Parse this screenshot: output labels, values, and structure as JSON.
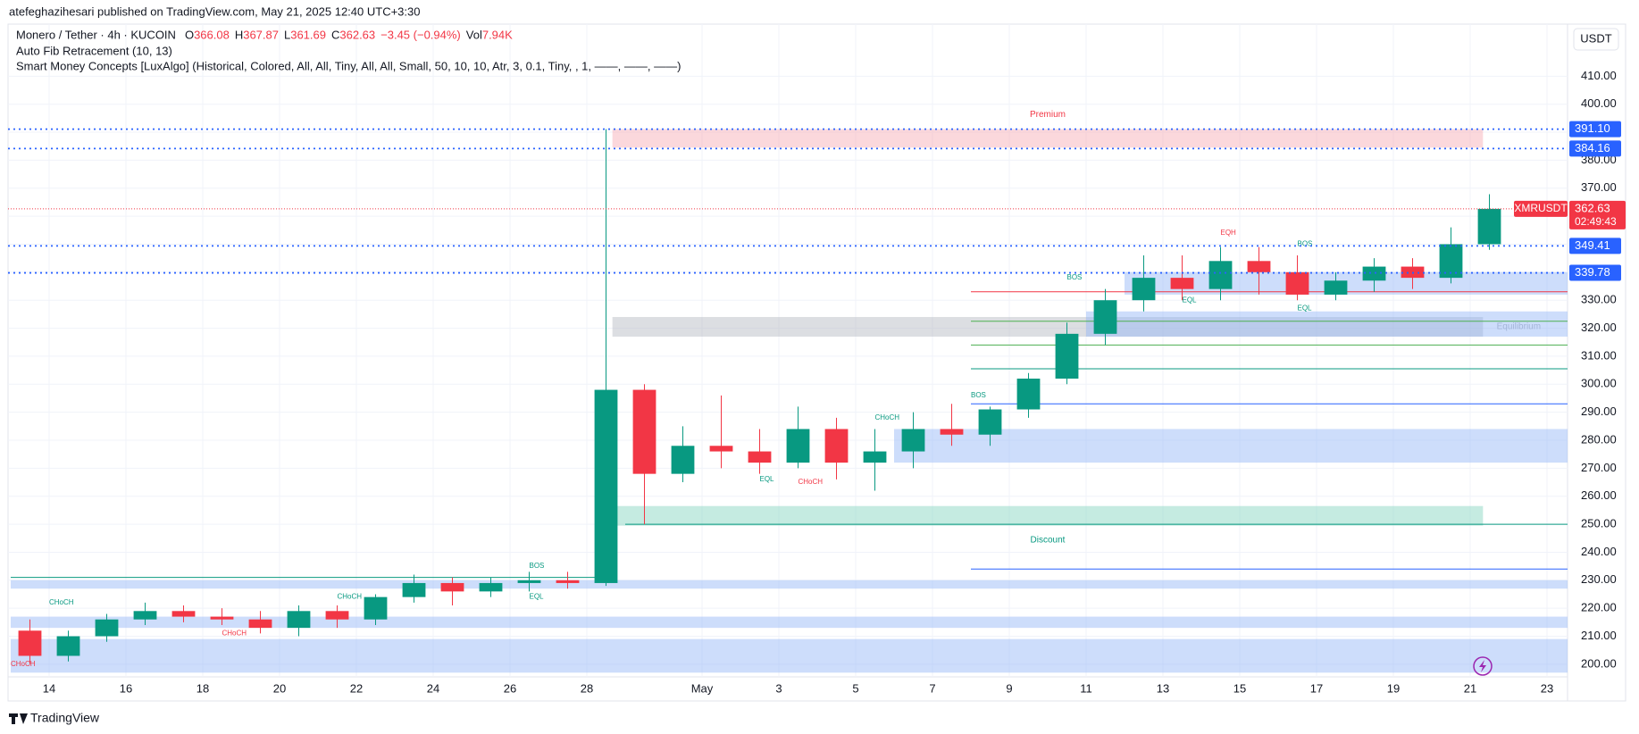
{
  "header": {
    "publisher": "atefeghazihesari published on TradingView.com, May 21, 2025 12:40 UTC+3:30",
    "symbol": "Monero / Tether · 4h · KUCOIN",
    "ohlc": [
      {
        "label": "O",
        "value": "366.08"
      },
      {
        "label": "H",
        "value": "367.87"
      },
      {
        "label": "L",
        "value": "361.69"
      },
      {
        "label": "C",
        "value": "362.63"
      },
      {
        "label": "",
        "value": "−3.45 (−0.94%)"
      }
    ],
    "volume": {
      "label": "Vol",
      "value": "7.94K"
    },
    "indicators": [
      "Auto Fib Retracement (10, 13)",
      "Smart Money Concepts [LuxAlgo] (Historical, Colored, All, All, Tiny, All, All, Small, 50, 10, 10, Atr, 3, 0.1, Tiny, , 1, ——, ——, ——)"
    ],
    "currency": "USDT",
    "logo": "TradingView"
  },
  "chart_data": {
    "type": "candlestick",
    "up_color": "#089981",
    "down_color": "#f23645",
    "x": [
      "2025-04-13",
      "2025-04-14",
      "2025-04-15",
      "2025-04-16",
      "2025-04-17",
      "2025-04-18",
      "2025-04-19",
      "2025-04-20",
      "2025-04-21",
      "2025-04-22",
      "2025-04-23",
      "2025-04-24",
      "2025-04-25",
      "2025-04-26",
      "2025-04-27",
      "2025-04-28",
      "2025-04-29",
      "2025-04-30",
      "2025-05-01",
      "2025-05-02",
      "2025-05-03",
      "2025-05-04",
      "2025-05-05",
      "2025-05-06",
      "2025-05-07",
      "2025-05-08",
      "2025-05-09",
      "2025-05-10",
      "2025-05-11",
      "2025-05-12",
      "2025-05-13",
      "2025-05-14",
      "2025-05-15",
      "2025-05-16",
      "2025-05-17",
      "2025-05-18",
      "2025-05-19",
      "2025-05-20",
      "2025-05-21"
    ],
    "open": [
      212,
      203,
      210,
      216,
      219,
      217,
      216,
      213,
      219,
      216,
      224,
      229,
      226,
      229,
      230,
      229,
      298,
      268,
      278,
      276,
      272,
      284,
      272,
      276,
      284,
      282,
      291,
      302,
      318,
      330,
      338,
      334,
      344,
      340,
      332,
      337,
      342,
      338,
      350
    ],
    "high": [
      216,
      212,
      218,
      222,
      221,
      220,
      219,
      221,
      221,
      225,
      232,
      231,
      231,
      233,
      233,
      391.1,
      300,
      285,
      296,
      284,
      292,
      288,
      284,
      290,
      293,
      292,
      304,
      322,
      334,
      346,
      346,
      349,
      349,
      346,
      340,
      345,
      345,
      356,
      367.87
    ],
    "low": [
      200,
      201,
      208,
      214,
      215,
      214,
      211,
      210,
      213,
      214,
      222,
      221,
      224,
      226,
      227,
      228,
      250,
      265,
      270,
      268,
      270,
      266,
      262,
      270,
      278,
      278,
      288,
      300,
      314,
      326,
      330,
      330,
      332,
      330,
      330,
      333,
      334,
      336,
      348
    ],
    "close": [
      203,
      210,
      216,
      219,
      217,
      216,
      213,
      219,
      216,
      224,
      229,
      226,
      229,
      230,
      229,
      298,
      268,
      278,
      276,
      272,
      284,
      272,
      276,
      284,
      282,
      291,
      302,
      318,
      330,
      338,
      334,
      344,
      340,
      332,
      337,
      342,
      338,
      350,
      362.63
    ],
    "ylim": [
      195.5,
      428.6
    ],
    "yticks": [
      {
        "value": 200,
        "label": "200.00"
      },
      {
        "value": 210,
        "label": "210.00"
      },
      {
        "value": 220,
        "label": "220.00"
      },
      {
        "value": 230,
        "label": "230.00"
      },
      {
        "value": 240,
        "label": "240.00"
      },
      {
        "value": 250,
        "label": "250.00"
      },
      {
        "value": 260,
        "label": "260.00"
      },
      {
        "value": 270,
        "label": "270.00"
      },
      {
        "value": 280,
        "label": "280.00"
      },
      {
        "value": 290,
        "label": "290.00"
      },
      {
        "value": 300,
        "label": "300.00"
      },
      {
        "value": 310,
        "label": "310.00"
      },
      {
        "value": 320,
        "label": "320.00"
      },
      {
        "value": 330,
        "label": "330.00"
      },
      {
        "value": 340,
        "label": "340.00"
      },
      {
        "value": 350,
        "label": "350.00"
      },
      {
        "value": 360,
        "label": "360.00"
      },
      {
        "value": 370,
        "label": "370.00"
      },
      {
        "value": 380,
        "label": "380.00"
      },
      {
        "value": 390,
        "label": "390.00"
      },
      {
        "value": 400,
        "label": "400.00"
      },
      {
        "value": 410,
        "label": "410.00"
      }
    ],
    "xticks": [
      {
        "value": "2025-04-14",
        "label": "14"
      },
      {
        "value": "2025-04-16",
        "label": "16"
      },
      {
        "value": "2025-04-18",
        "label": "18"
      },
      {
        "value": "2025-04-20",
        "label": "20"
      },
      {
        "value": "2025-04-22",
        "label": "22"
      },
      {
        "value": "2025-04-24",
        "label": "24"
      },
      {
        "value": "2025-04-26",
        "label": "26"
      },
      {
        "value": "2025-04-28",
        "label": "28"
      },
      {
        "value": "2025-05-01",
        "label": "May"
      },
      {
        "value": "2025-05-03",
        "label": "3"
      },
      {
        "value": "2025-05-05",
        "label": "5"
      },
      {
        "value": "2025-05-07",
        "label": "7"
      },
      {
        "value": "2025-05-09",
        "label": "9"
      },
      {
        "value": "2025-05-11",
        "label": "11"
      },
      {
        "value": "2025-05-13",
        "label": "13"
      },
      {
        "value": "2025-05-15",
        "label": "15"
      },
      {
        "value": "2025-05-17",
        "label": "17"
      },
      {
        "value": "2025-05-19",
        "label": "19"
      },
      {
        "value": "2025-05-21",
        "label": "21"
      },
      {
        "value": "2025-05-23",
        "label": "23"
      }
    ],
    "grid": true,
    "levels": [
      {
        "value": 391.1,
        "label": "391.10",
        "color": "#2962ff"
      },
      {
        "value": 384.16,
        "label": "384.16",
        "color": "#2962ff"
      },
      {
        "value": 349.41,
        "label": "349.41",
        "color": "#2962ff"
      },
      {
        "value": 339.78,
        "label": "339.78",
        "color": "#2962ff"
      }
    ],
    "last_price": {
      "value": 362.63,
      "label": "362.63",
      "symbol": "XMRUSDT",
      "countdown": "02:49:43",
      "color": "#f23645"
    },
    "zones": [
      {
        "label": "Premium",
        "top": 391.1,
        "bottom": 384.5,
        "from": "2025-04-28T16:00Z",
        "to": "2025-05-21T08:00Z",
        "color": "#f7a9b1"
      },
      {
        "label": "Equilibrium",
        "top": 324,
        "bottom": 317,
        "from": "2025-04-28T16:00Z",
        "to": "2025-05-21T08:00Z",
        "color": "#b2b5be"
      },
      {
        "label": "Discount",
        "top": 256.5,
        "bottom": 249.5,
        "from": "2025-04-28T16:00Z",
        "to": "2025-05-21T08:00Z",
        "color": "#7fd3bd"
      },
      {
        "top": 340,
        "bottom": 332,
        "from": "2025-05-12T00:00Z",
        "to": "2025-05-23T16:00Z",
        "color": "#90b4f7"
      },
      {
        "top": 326,
        "bottom": 317,
        "from": "2025-05-11T00:00Z",
        "to": "2025-05-23T16:00Z",
        "color": "#90b4f7"
      },
      {
        "top": 284,
        "bottom": 272,
        "from": "2025-05-06T00:00Z",
        "to": "2025-05-23T16:00Z",
        "color": "#90b4f7"
      },
      {
        "top": 230,
        "bottom": 227,
        "from": "2025-04-13T00:00Z",
        "to": "2025-05-23T16:00Z",
        "color": "#90b4f7"
      },
      {
        "top": 217,
        "bottom": 213,
        "from": "2025-04-13T00:00Z",
        "to": "2025-05-23T16:00Z",
        "color": "#90b4f7"
      },
      {
        "top": 209,
        "bottom": 197,
        "from": "2025-04-13T00:00Z",
        "to": "2025-05-23T16:00Z",
        "color": "#90b4f7"
      }
    ],
    "lines": [
      {
        "value": 231,
        "from": "2025-04-13T00:00Z",
        "to": "2025-04-28T12:00Z",
        "color": "#089981"
      },
      {
        "value": 250,
        "from": "2025-04-29T00:00Z",
        "to": "2025-05-23T16:00Z",
        "color": "#089981"
      },
      {
        "value": 333,
        "from": "2025-05-08T00:00Z",
        "to": "2025-05-23T16:00Z",
        "color": "#f23645"
      },
      {
        "value": 322.5,
        "from": "2025-05-08T00:00Z",
        "to": "2025-05-23T16:00Z",
        "color": "#4caf50"
      },
      {
        "value": 314,
        "from": "2025-05-08T00:00Z",
        "to": "2025-05-23T16:00Z",
        "color": "#4caf50"
      },
      {
        "value": 305.5,
        "from": "2025-05-08T00:00Z",
        "to": "2025-05-23T16:00Z",
        "color": "#089981"
      },
      {
        "value": 293,
        "from": "2025-05-08T00:00Z",
        "to": "2025-05-23T16:00Z",
        "color": "#2962ff"
      },
      {
        "value": 234,
        "from": "2025-05-08T00:00Z",
        "to": "2025-05-23T16:00Z",
        "color": "#2962ff"
      }
    ],
    "annotations": [
      {
        "text": "CHoCH",
        "x": "2025-04-14T00:00Z",
        "y": 222,
        "color": "#089981"
      },
      {
        "text": "CHoCH",
        "x": "2025-04-13T00:00Z",
        "y": 200,
        "color": "#f23645"
      },
      {
        "text": "CHoCH",
        "x": "2025-04-18T12:00Z",
        "y": 211,
        "color": "#f23645"
      },
      {
        "text": "CHoCH",
        "x": "2025-04-21T12:00Z",
        "y": 224,
        "color": "#089981"
      },
      {
        "text": "BOS",
        "x": "2025-04-26T12:00Z",
        "y": 235,
        "color": "#089981"
      },
      {
        "text": "EQL",
        "x": "2025-04-26T12:00Z",
        "y": 224,
        "color": "#089981"
      },
      {
        "text": "EQL",
        "x": "2025-05-02T12:00Z",
        "y": 266,
        "color": "#089981"
      },
      {
        "text": "CHoCH",
        "x": "2025-05-03T12:00Z",
        "y": 265,
        "color": "#f23645"
      },
      {
        "text": "CHoCH",
        "x": "2025-05-05T12:00Z",
        "y": 288,
        "color": "#089981"
      },
      {
        "text": "BOS",
        "x": "2025-05-08T00:00Z",
        "y": 296,
        "color": "#089981"
      },
      {
        "text": "BOS",
        "x": "2025-05-10T12:00Z",
        "y": 338,
        "color": "#089981"
      },
      {
        "text": "EQL",
        "x": "2025-05-13T12:00Z",
        "y": 330,
        "color": "#089981"
      },
      {
        "text": "EQH",
        "x": "2025-05-14T12:00Z",
        "y": 354,
        "color": "#f23645"
      },
      {
        "text": "BOS",
        "x": "2025-05-16T12:00Z",
        "y": 350,
        "color": "#089981"
      },
      {
        "text": "EQL",
        "x": "2025-05-16T12:00Z",
        "y": 327,
        "color": "#089981"
      }
    ]
  }
}
